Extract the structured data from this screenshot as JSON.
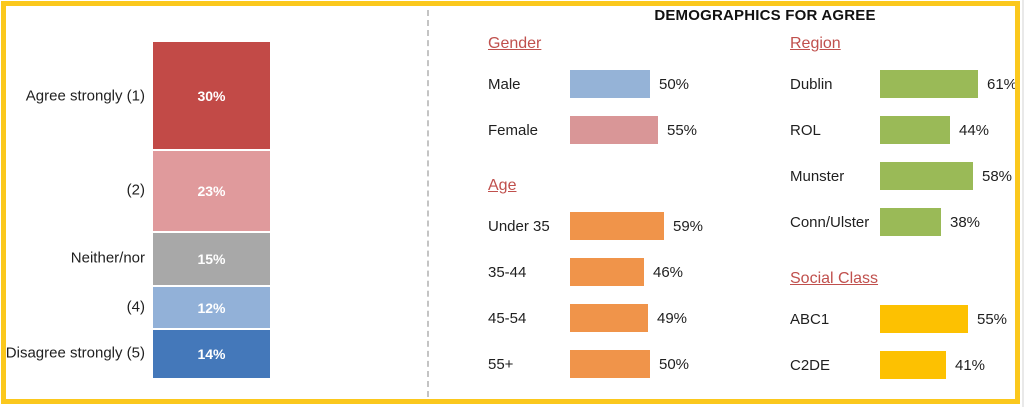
{
  "frame": {
    "border_color": "#fbc81d"
  },
  "separator": {
    "style": "dashed",
    "color": "#c4c4c4"
  },
  "title": "DEMOGRAPHICS FOR AGREE",
  "chart_data": [
    {
      "type": "bar",
      "variant": "stacked-vertical",
      "title": "",
      "unit": "%",
      "categories": [
        "Agree strongly (1)",
        "(2)",
        "Neither/nor",
        "(4)",
        "Disagree strongly (5)"
      ],
      "values": [
        30,
        23,
        15,
        12,
        14
      ],
      "colors": [
        "#c24a47",
        "#e09a9c",
        "#a8a8a8",
        "#92b1d8",
        "#4478ba"
      ],
      "value_label_color": "#ffffff"
    },
    {
      "type": "bar",
      "variant": "horizontal-grouped",
      "title": "DEMOGRAPHICS FOR AGREE",
      "unit": "%",
      "heading_color": "#c0504d",
      "legend_position": "none",
      "groups": [
        {
          "name": "Gender",
          "categories": [
            "Male",
            "Female"
          ],
          "values": [
            50,
            55
          ],
          "colors": [
            "#95b3d7",
            "#d99697"
          ]
        },
        {
          "name": "Age",
          "categories": [
            "Under 35",
            "35-44",
            "45-54",
            "55+"
          ],
          "values": [
            59,
            46,
            49,
            50
          ],
          "colors": [
            "#f0944a",
            "#f0944a",
            "#f0944a",
            "#f0944a"
          ]
        },
        {
          "name": "Region",
          "categories": [
            "Dublin",
            "ROL",
            "Munster",
            "Conn/Ulster"
          ],
          "values": [
            61,
            44,
            58,
            38
          ],
          "colors": [
            "#9aba57",
            "#9aba57",
            "#9aba57",
            "#9aba57"
          ]
        },
        {
          "name": "Social Class",
          "categories": [
            "ABC1",
            "C2DE"
          ],
          "values": [
            55,
            41
          ],
          "colors": [
            "#fdc101",
            "#fdc101"
          ]
        }
      ]
    }
  ]
}
